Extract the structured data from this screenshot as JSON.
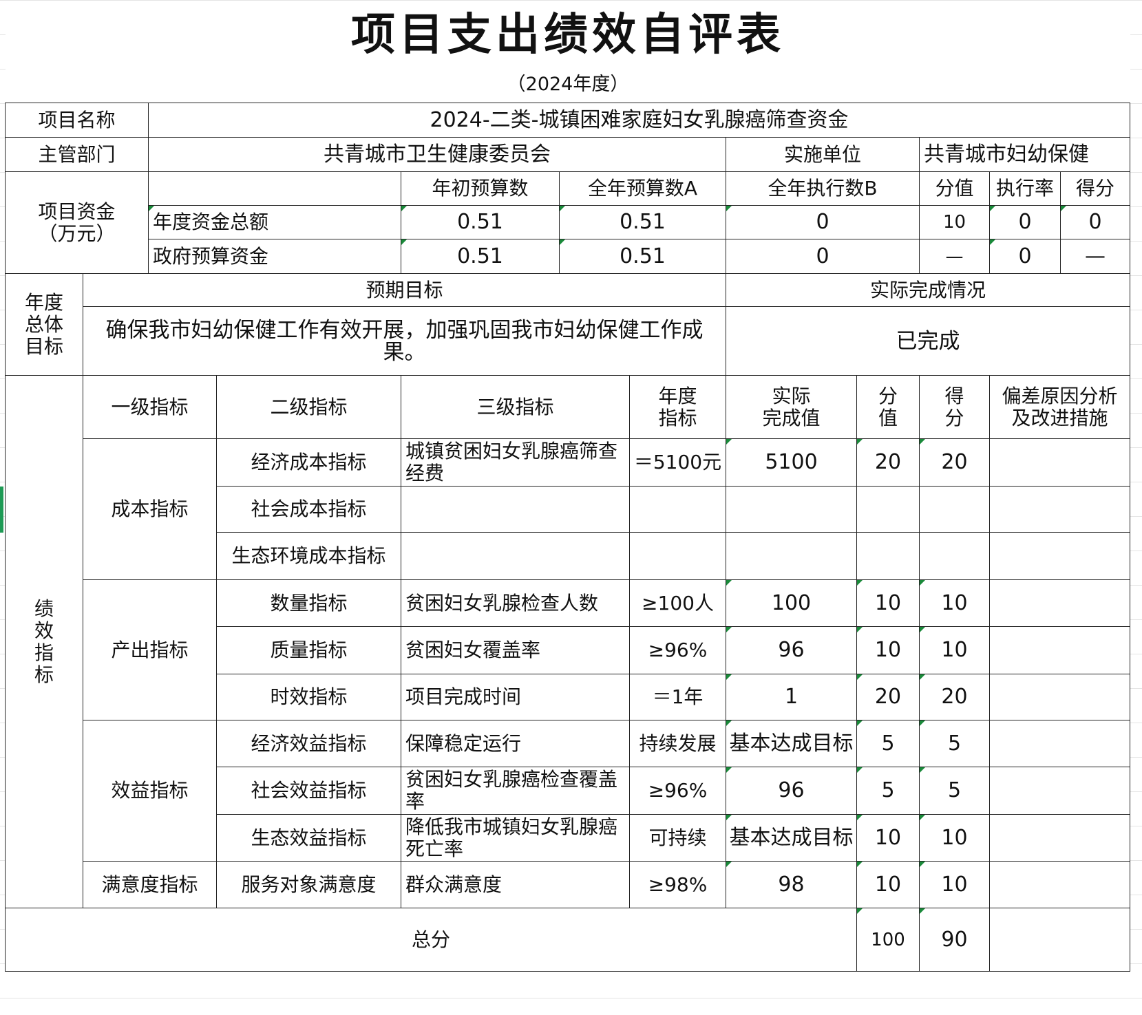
{
  "title": "项目支出绩效自评表",
  "subtitle": "（2024年度）",
  "info": {
    "project_name_label": "项目名称",
    "project_name": "2024-二类-城镇困难家庭妇女乳腺癌筛查资金",
    "dept_label": "主管部门",
    "dept": "共青城市卫生健康委员会",
    "impl_label": "实施单位",
    "impl": "共青城市妇幼保健"
  },
  "funds": {
    "label": "项目资金\n（万元）",
    "headers": [
      "年初预算数",
      "全年预算数A",
      "全年执行数B",
      "分值",
      "执行率",
      "得分"
    ],
    "rows": [
      {
        "label": "年度资金总额",
        "values": [
          "0.51",
          "0.51",
          "0",
          "10",
          "0",
          "0"
        ]
      },
      {
        "label": "政府预算资金",
        "values": [
          "0.51",
          "0.51",
          "0",
          "—",
          "0",
          "—"
        ]
      }
    ]
  },
  "goal": {
    "label": "年度\n总体\n目标",
    "expected_label": "预期目标",
    "actual_label": "实际完成情况",
    "expected": "确保我市妇幼保健工作有效开展，加强巩固我市妇幼保健工作成果。",
    "actual": "已完成"
  },
  "indicators": {
    "label": "绩\n效\n指\n标",
    "headers": [
      "一级指标",
      "二级指标",
      "三级指标",
      "年度\n指标",
      "实际\n完成值",
      "分\n值",
      "得\n分",
      "偏差原因分析\n及改进措施"
    ],
    "level1": [
      "成本指标",
      "产出指标",
      "效益指标",
      "满意度指标"
    ],
    "rows": [
      {
        "l2": "经济成本指标",
        "l3": "城镇贫困妇女乳腺癌筛查经费",
        "target": "＝5100元",
        "actual": "5100",
        "score_value": "20",
        "score": "20",
        "note": ""
      },
      {
        "l2": "社会成本指标",
        "l3": "",
        "target": "",
        "actual": "",
        "score_value": "",
        "score": "",
        "note": ""
      },
      {
        "l2": "生态环境成本指标",
        "l3": "",
        "target": "",
        "actual": "",
        "score_value": "",
        "score": "",
        "note": ""
      },
      {
        "l2": "数量指标",
        "l3": "贫困妇女乳腺检查人数",
        "target": "≥100人",
        "actual": "100",
        "score_value": "10",
        "score": "10",
        "note": ""
      },
      {
        "l2": "质量指标",
        "l3": "贫困妇女覆盖率",
        "target": "≥96%",
        "actual": "96",
        "score_value": "10",
        "score": "10",
        "note": ""
      },
      {
        "l2": "时效指标",
        "l3": "项目完成时间",
        "target": "＝1年",
        "actual": "1",
        "score_value": "20",
        "score": "20",
        "note": ""
      },
      {
        "l2": "经济效益指标",
        "l3": "保障稳定运行",
        "target": "持续发展",
        "actual": "基本达成目标",
        "score_value": "5",
        "score": "5",
        "note": ""
      },
      {
        "l2": "社会效益指标",
        "l3": "贫困妇女乳腺癌检查覆盖率",
        "target": "≥96%",
        "actual": "96",
        "score_value": "5",
        "score": "5",
        "note": ""
      },
      {
        "l2": "生态效益指标",
        "l3": "降低我市城镇妇女乳腺癌死亡率",
        "target": "可持续",
        "actual": "基本达成目标",
        "score_value": "10",
        "score": "10",
        "note": ""
      },
      {
        "l2": "服务对象满意度",
        "l3": "群众满意度",
        "target": "≥98%",
        "actual": "98",
        "score_value": "10",
        "score": "10",
        "note": ""
      }
    ]
  },
  "total": {
    "label": "总分",
    "score_value": "100",
    "score": "90",
    "note": ""
  }
}
